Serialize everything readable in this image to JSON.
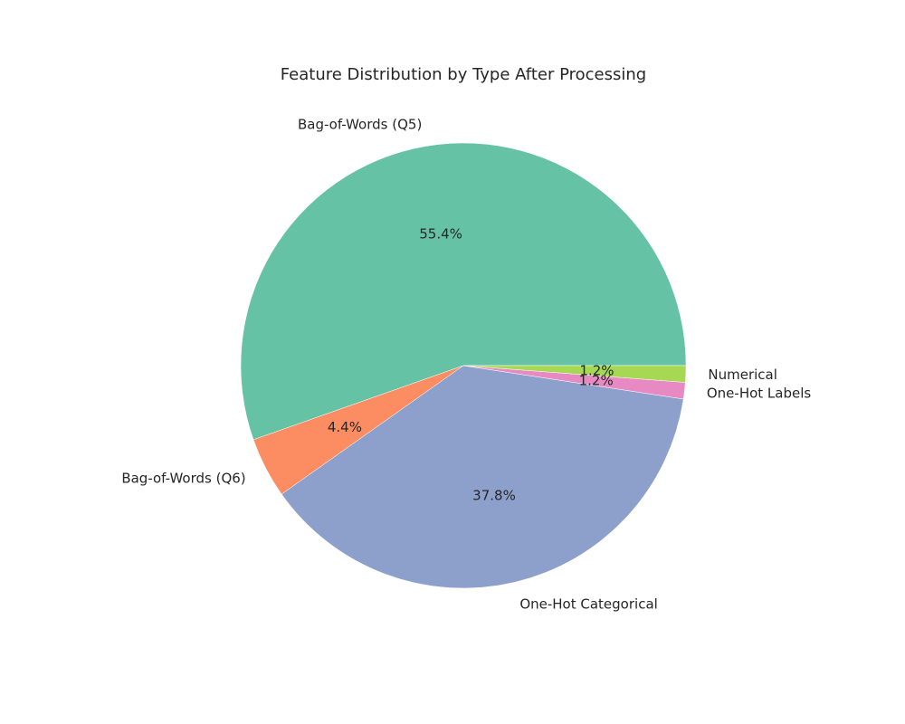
{
  "chart_data": {
    "type": "pie",
    "title": "Feature Distribution by Type After Processing",
    "start_angle_deg": 0,
    "direction": "counterclockwise",
    "slices": [
      {
        "label": "Bag-of-Words (Q5)",
        "value": 55.4,
        "pct_label": "55.4%",
        "color": "#66c2a5"
      },
      {
        "label": "Bag-of-Words (Q6)",
        "value": 4.4,
        "pct_label": "4.4%",
        "color": "#fc8d62"
      },
      {
        "label": "One-Hot Categorical",
        "value": 37.8,
        "pct_label": "37.8%",
        "color": "#8da0cb"
      },
      {
        "label": "One-Hot Labels",
        "value": 1.2,
        "pct_label": "1.2%",
        "color": "#e78ac3"
      },
      {
        "label": "Numerical",
        "value": 1.2,
        "pct_label": "1.2%",
        "color": "#a6d854"
      }
    ]
  }
}
